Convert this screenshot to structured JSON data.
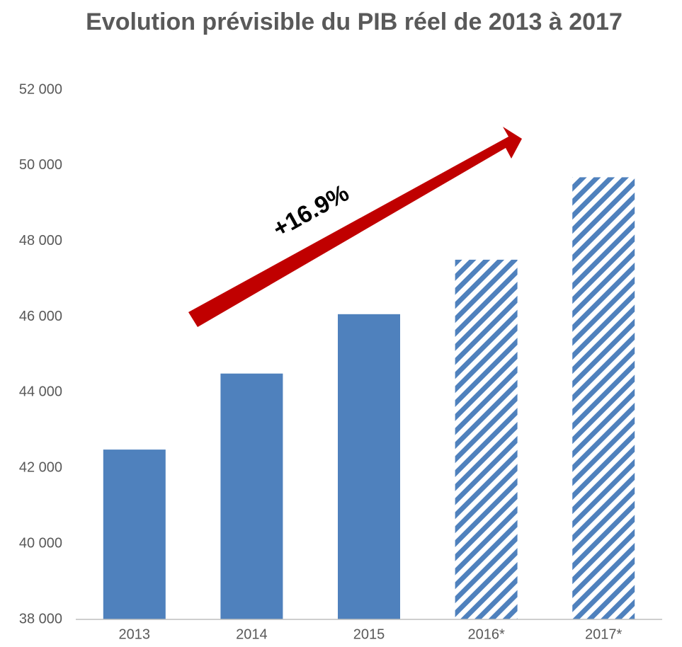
{
  "chart_data": {
    "type": "bar",
    "title": "Evolution prévisible du PIB réel de 2013 à 2017",
    "categories": [
      "2013",
      "2014",
      "2015",
      "2016*",
      "2017*"
    ],
    "values": [
      42490,
      44500,
      46070,
      47510,
      49690
    ],
    "hatched": [
      false,
      false,
      false,
      true,
      true
    ],
    "color": "#4f81bd",
    "ylim": [
      38000,
      52000
    ],
    "yticks": [
      {
        "value": 38000,
        "label": "38 000"
      },
      {
        "value": 40000,
        "label": "40 000"
      },
      {
        "value": 42000,
        "label": "42 000"
      },
      {
        "value": 44000,
        "label": "44 000"
      },
      {
        "value": 46000,
        "label": "46 000"
      },
      {
        "value": 48000,
        "label": "48 000"
      },
      {
        "value": 50000,
        "label": "50 000"
      },
      {
        "value": 52000,
        "label": "52 000"
      }
    ],
    "grid": false,
    "annotation": "+16.9%"
  }
}
